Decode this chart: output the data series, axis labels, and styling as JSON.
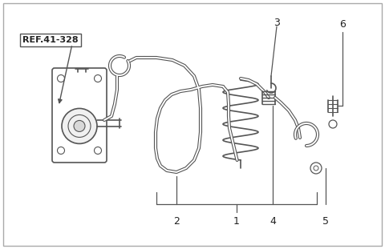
{
  "background_color": "#ffffff",
  "line_color": "#555555",
  "label_color": "#222222",
  "ref_label": "REF.41-328",
  "figsize": [
    4.8,
    3.11
  ],
  "dpi": 100,
  "tube_lw_outer": 3.0,
  "tube_lw_inner": 1.4,
  "main_lw": 1.2
}
